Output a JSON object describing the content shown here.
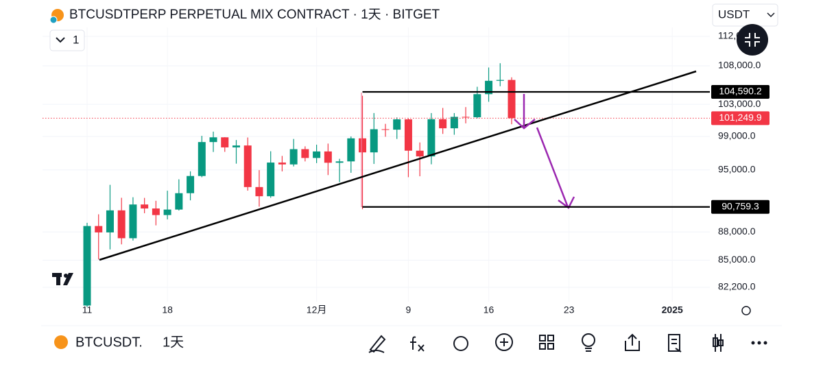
{
  "chart_data": {
    "type": "candlestick",
    "title": "BTCUSDTPERP PERPETUAL MIX CONTRACT · 1天 · BITGET",
    "currency": "USDT",
    "pane_count": "1",
    "symbol": "BTCUSDT.",
    "interval": "1天",
    "categories": [
      "11",
      null,
      null,
      null,
      null,
      null,
      null,
      "18",
      null,
      null,
      null,
      null,
      null,
      null,
      null,
      null,
      null,
      null,
      null,
      null,
      "12月",
      null,
      null,
      null,
      null,
      null,
      null,
      null,
      "9",
      null,
      null,
      null,
      null,
      null,
      null,
      "16",
      null,
      null,
      null,
      null,
      null,
      null,
      "23",
      null,
      null,
      null,
      null,
      null,
      null,
      null,
      null,
      "2025",
      null,
      null
    ],
    "open": [
      80370,
      88648,
      87952,
      90375,
      87325,
      91032,
      90587,
      89855,
      90465,
      92310,
      94287,
      98317,
      98892,
      97672,
      97901,
      93010,
      91965,
      95863,
      95643,
      97460,
      96407,
      97185,
      95840,
      96002,
      98768,
      97074,
      99884,
      99831,
      101109,
      97276,
      96593,
      101125,
      100000,
      101420,
      101372,
      104298,
      106029,
      106140,
      null,
      null,
      null,
      null,
      null,
      null,
      null,
      null,
      null,
      null,
      null,
      null,
      null,
      null,
      null,
      null
    ],
    "high": [
      89000,
      89940,
      93265,
      91790,
      91850,
      91779,
      91449,
      92594,
      93905,
      94831,
      99073,
      99588,
      98908,
      98564,
      98871,
      94973,
      97208,
      96650,
      98693,
      97799,
      98000,
      98130,
      96305,
      99000,
      104088,
      101898,
      100548,
      101350,
      101215,
      98270,
      101895,
      102540,
      101895,
      102650,
      105250,
      107780,
      108353,
      106488,
      null,
      null,
      null,
      null,
      null,
      null,
      null,
      null,
      null,
      null,
      null,
      null,
      null,
      null,
      null,
      null
    ],
    "low": [
      80216,
      85072,
      86127,
      86668,
      87073,
      90056,
      88722,
      89376,
      90357,
      91500,
      94144,
      97122,
      97136,
      95734,
      92600,
      90791,
      91792,
      94827,
      95407,
      96000,
      95800,
      94395,
      93578,
      94660,
      90500,
      95700,
      98963,
      98694,
      94150,
      94256,
      95657,
      99311,
      99205,
      100610,
      101234,
      103322,
      105321,
      100500,
      null,
      null,
      null,
      null,
      null,
      null,
      null,
      null,
      null,
      null,
      null,
      null,
      null,
      null,
      null,
      null
    ],
    "close": [
      88648,
      87952,
      90375,
      87325,
      91032,
      90587,
      89855,
      90465,
      92310,
      94287,
      98317,
      98892,
      97672,
      97901,
      93010,
      91965,
      95863,
      95643,
      97460,
      96407,
      97185,
      95840,
      96002,
      98768,
      97074,
      99884,
      99831,
      101109,
      97276,
      96593,
      101125,
      100000,
      101420,
      101372,
      104298,
      106029,
      106140,
      101249.9,
      null,
      null,
      null,
      null,
      null,
      null,
      null,
      null,
      null,
      null,
      null,
      null,
      null,
      null,
      null,
      null
    ],
    "up_color": "#089981",
    "down_color": "#f23645",
    "log_scale": true,
    "grid": true,
    "ylim": [
      80750,
      113240
    ],
    "yticks": [
      {
        "value": 112000,
        "label": "112,000.0"
      },
      {
        "value": 108000,
        "label": "108,000.0"
      },
      {
        "value": 103000,
        "label": "103,000.0"
      },
      {
        "value": 99000,
        "label": "99,000.0"
      },
      {
        "value": 95000,
        "label": "95,000.0"
      },
      {
        "value": 88000,
        "label": "88,000.0"
      },
      {
        "value": 85000,
        "label": "85,000.0"
      },
      {
        "value": 82200,
        "label": "82,200.0"
      }
    ],
    "price_lines": [
      {
        "value": 104590.2,
        "label": "104,590.2"
      },
      {
        "value": 90759.3,
        "label": "90,759.3"
      }
    ],
    "last_price": {
      "value": 101249.9,
      "label": "101,249.9",
      "color": "#f23645"
    }
  }
}
